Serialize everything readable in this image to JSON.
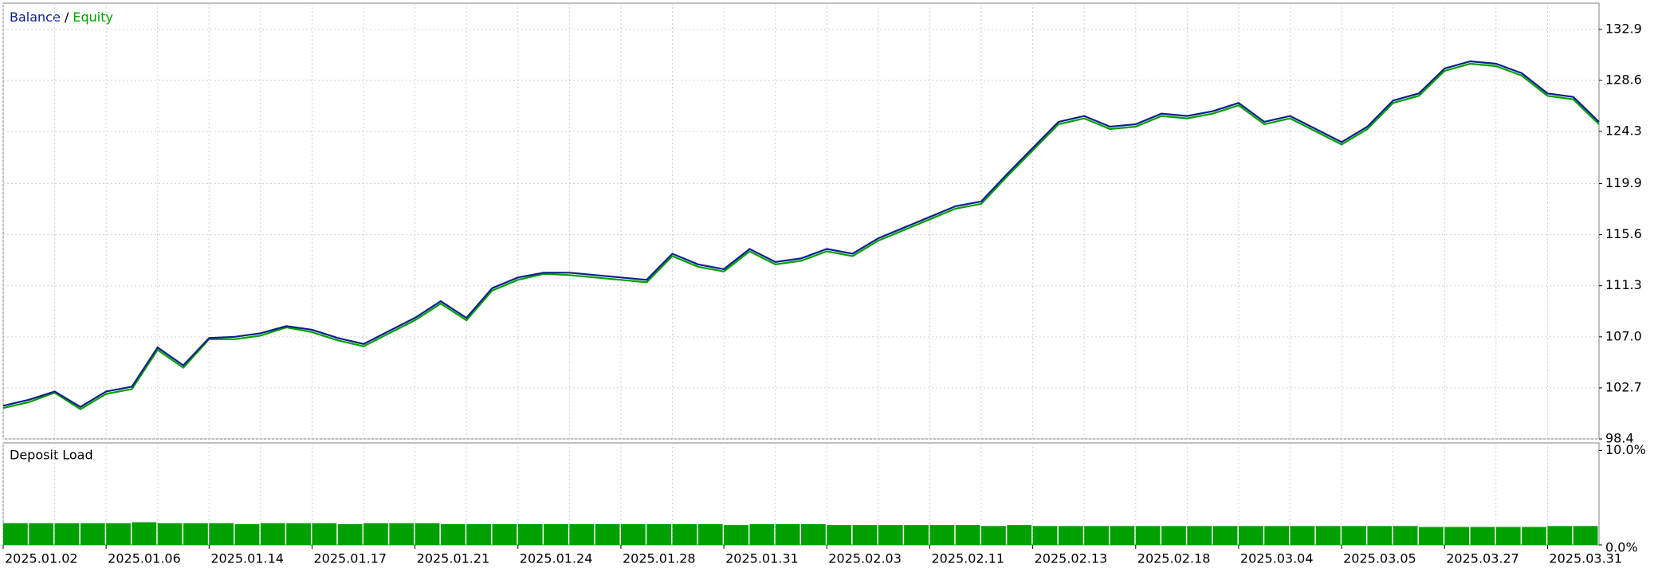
{
  "chart_data": [
    {
      "type": "line",
      "x": [
        0,
        5,
        10,
        15,
        20,
        25,
        30,
        35,
        40,
        45,
        50,
        55,
        60,
        65,
        70,
        75,
        80,
        85,
        90,
        95,
        100,
        105,
        110,
        115,
        120,
        125,
        130,
        135,
        140,
        145,
        150,
        155,
        160,
        165,
        170,
        175,
        180,
        185,
        190,
        195,
        200,
        205,
        210,
        215,
        220,
        225,
        230,
        235,
        240,
        245,
        250,
        255,
        260,
        265,
        270,
        275,
        280,
        285,
        290,
        295,
        300,
        305,
        310
      ],
      "series": [
        {
          "name": "Balance",
          "color": "#0b1f8c",
          "values": [
            101.2,
            101.7,
            102.4,
            101.1,
            102.4,
            102.8,
            106.1,
            104.6,
            106.9,
            107.0,
            107.3,
            107.9,
            107.6,
            106.9,
            106.4,
            107.5,
            108.6,
            110.0,
            108.6,
            111.1,
            112.0,
            112.4,
            112.4,
            112.2,
            112.0,
            111.8,
            114.0,
            113.1,
            112.7,
            114.4,
            113.3,
            113.6,
            114.4,
            114.0,
            115.3,
            116.2,
            117.1,
            118.0,
            118.4,
            120.7,
            122.9,
            125.1,
            125.6,
            124.7,
            124.9,
            125.8,
            125.6,
            126.0,
            126.7,
            125.1,
            125.6,
            124.5,
            123.4,
            124.7,
            126.9,
            127.5,
            129.6,
            130.2,
            130.0,
            129.2,
            127.5,
            127.2,
            125.1
          ]
        },
        {
          "name": "Equity",
          "color": "#00a000",
          "values": [
            101.0,
            101.5,
            102.3,
            100.9,
            102.2,
            102.6,
            105.9,
            104.4,
            106.8,
            106.8,
            107.1,
            107.8,
            107.4,
            106.7,
            106.2,
            107.3,
            108.4,
            109.8,
            108.4,
            110.9,
            111.8,
            112.3,
            112.2,
            112.0,
            111.8,
            111.6,
            113.8,
            112.9,
            112.5,
            114.2,
            113.1,
            113.4,
            114.2,
            113.8,
            115.1,
            116.0,
            116.9,
            117.8,
            118.2,
            120.5,
            122.7,
            124.9,
            125.4,
            124.5,
            124.7,
            125.6,
            125.4,
            125.8,
            126.5,
            124.9,
            125.4,
            124.3,
            123.2,
            124.5,
            126.7,
            127.3,
            129.4,
            130.0,
            129.8,
            129.0,
            127.3,
            127.0,
            124.9
          ]
        }
      ],
      "xlim": [
        0,
        310
      ],
      "xticks": [
        {
          "value": 0,
          "label": "2025.01.02"
        },
        {
          "value": 20,
          "label": "2025.01.06"
        },
        {
          "value": 40,
          "label": "2025.01.14"
        },
        {
          "value": 60,
          "label": "2025.01.17"
        },
        {
          "value": 80,
          "label": "2025.01.21"
        },
        {
          "value": 100,
          "label": "2025.01.24"
        },
        {
          "value": 120,
          "label": "2025.01.28"
        },
        {
          "value": 140,
          "label": "2025.01.31"
        },
        {
          "value": 160,
          "label": "2025.02.03"
        },
        {
          "value": 180,
          "label": "2025.02.11"
        },
        {
          "value": 200,
          "label": "2025.02.13"
        },
        {
          "value": 220,
          "label": "2025.02.18"
        },
        {
          "value": 240,
          "label": "2025.03.04"
        },
        {
          "value": 260,
          "label": "2025.03.05"
        },
        {
          "value": 280,
          "label": "2025.03.27"
        },
        {
          "value": 300,
          "label": "2025.03.31"
        }
      ],
      "ylim": [
        98.4,
        135.1
      ],
      "yticks": [
        98.4,
        102.7,
        {
          "value": 107,
          "label": "107.0"
        },
        111.3,
        115.6,
        119.9,
        124.3,
        128.6,
        132.9
      ],
      "grid": true
    },
    {
      "type": "bar",
      "title": "Deposit Load",
      "color": "#00a000",
      "values": [
        2.3,
        2.3,
        2.3,
        2.3,
        2.3,
        2.4,
        2.3,
        2.3,
        2.3,
        2.2,
        2.3,
        2.3,
        2.3,
        2.2,
        2.3,
        2.3,
        2.3,
        2.2,
        2.2,
        2.2,
        2.2,
        2.2,
        2.2,
        2.2,
        2.2,
        2.2,
        2.2,
        2.2,
        2.1,
        2.2,
        2.2,
        2.2,
        2.1,
        2.1,
        2.1,
        2.1,
        2.1,
        2.1,
        2.0,
        2.1,
        2.0,
        2.0,
        2.0,
        2.0,
        2.0,
        2.0,
        2.0,
        2.0,
        2.0,
        2.0,
        2.0,
        2.0,
        2.0,
        2.0,
        2.0,
        1.9,
        1.9,
        1.9,
        1.9,
        1.9,
        2.0,
        2.0
      ],
      "xlim": [
        0,
        310
      ],
      "ylim": [
        0,
        10.8
      ],
      "yticks": [
        {
          "value": 10,
          "label": "10.0%"
        },
        {
          "value": 0,
          "label": "0.0%"
        }
      ]
    }
  ]
}
